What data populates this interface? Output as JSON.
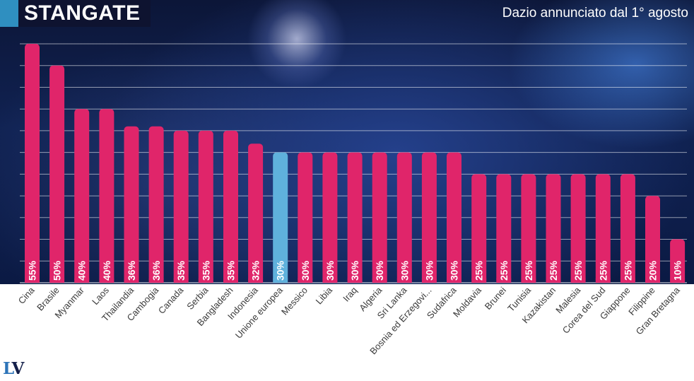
{
  "header": {
    "title": "STANGATE",
    "subtitle": "Dazio annunciato dal 1° agosto"
  },
  "logo": {
    "first": "L",
    "second": "V"
  },
  "colors": {
    "bar": "#e0256a",
    "highlight_bar": "#5fb1dc",
    "title_accent": "#2f8fc0",
    "gridline": "#ffffff"
  },
  "chart_data": {
    "type": "bar",
    "title": "STANGATE",
    "subtitle": "Dazio annunciato dal 1° agosto",
    "xlabel": "",
    "ylabel": "",
    "ylim": [
      0,
      55
    ],
    "grid": true,
    "legend": "none",
    "highlight": "Unione europea",
    "categories": [
      "Cina",
      "Brasile",
      "Myanmar",
      "Laos",
      "Thailandia",
      "Cambogia",
      "Canada",
      "Serbia",
      "Bangladesh",
      "Indonesia",
      "Unione europea",
      "Messico",
      "Libia",
      "Iraq",
      "Algeria",
      "Sri Lanka",
      "Bosnia ed Erzegovi...",
      "Sudafrica",
      "Moldavia",
      "Brunei",
      "Tunisia",
      "Kazakistan",
      "Malesia",
      "Corea del Sud",
      "Giappone",
      "Filippine",
      "Gran Bretagna"
    ],
    "values": [
      55,
      50,
      40,
      40,
      36,
      36,
      35,
      35,
      35,
      32,
      30,
      30,
      30,
      30,
      30,
      30,
      30,
      30,
      25,
      25,
      25,
      25,
      25,
      25,
      25,
      20,
      10
    ],
    "value_labels": [
      "55%",
      "50%",
      "40%",
      "40%",
      "36%",
      "36%",
      "35%",
      "35%",
      "35%",
      "32%",
      "30%",
      "30%",
      "30%",
      "30%",
      "30%",
      "30%",
      "30%",
      "30%",
      "25%",
      "25%",
      "25%",
      "25%",
      "25%",
      "25%",
      "25%",
      "20%",
      "10%"
    ]
  }
}
